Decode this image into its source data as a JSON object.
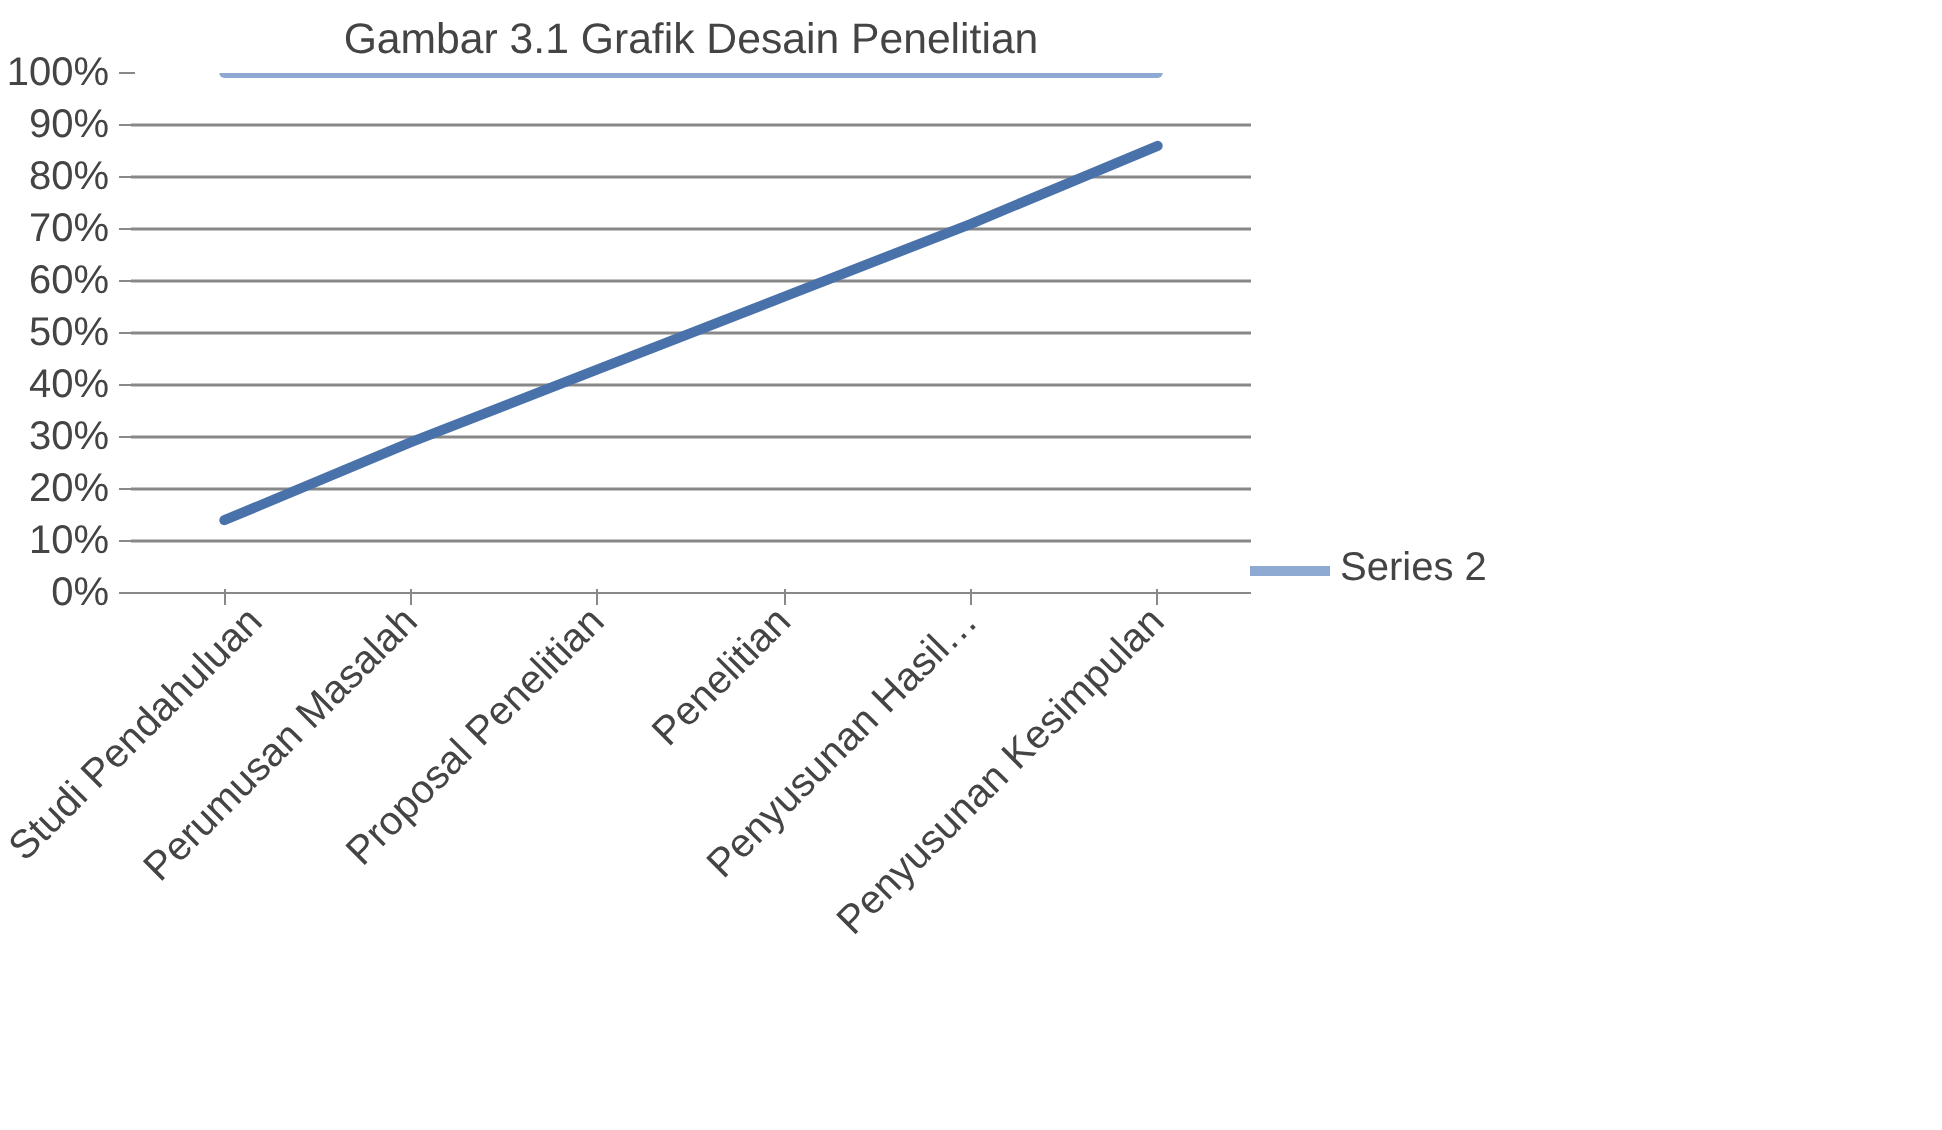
{
  "chart_data": {
    "type": "line",
    "title": "Gambar 3.1 Grafik Desain Penelitian",
    "categories": [
      "Studi Pendahuluan",
      "Perumusan Masalah",
      "Proposal Penelitian",
      "Penelitian",
      "Penyusunan Hasil…",
      "Penyusunan Kesimpulan"
    ],
    "series": [
      {
        "color": "#4a72aa",
        "values": [
          14,
          29,
          43,
          57,
          71,
          86
        ]
      },
      {
        "name": "Series 2",
        "color": "#8eaad3",
        "values": [
          100,
          100,
          100,
          100,
          100,
          100
        ]
      }
    ],
    "ylim": [
      0,
      100
    ],
    "yticks": [
      {
        "value": 0,
        "label": "0%"
      },
      {
        "value": 10,
        "label": "10%"
      },
      {
        "value": 20,
        "label": "20%"
      },
      {
        "value": 30,
        "label": "30%"
      },
      {
        "value": 40,
        "label": "40%"
      },
      {
        "value": 50,
        "label": "50%"
      },
      {
        "value": 60,
        "label": "60%"
      },
      {
        "value": 70,
        "label": "70%"
      },
      {
        "value": 80,
        "label": "80%"
      },
      {
        "value": 90,
        "label": "90%"
      },
      {
        "value": 100,
        "label": "100%"
      }
    ],
    "grid": "y",
    "legend": "right",
    "marker": "none",
    "line_style": "solid"
  }
}
